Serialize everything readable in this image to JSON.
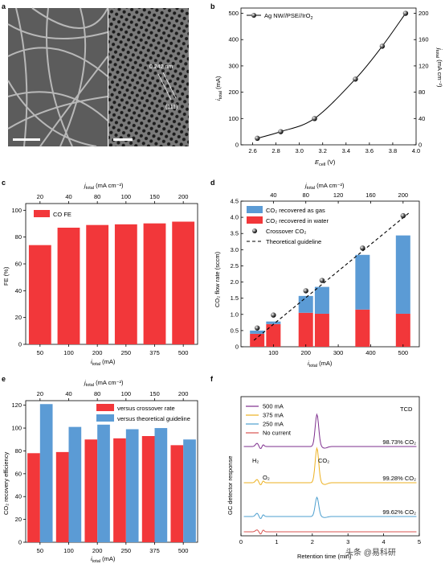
{
  "panel_letters": {
    "a": "a",
    "b": "b",
    "c": "c",
    "d": "d",
    "e": "e",
    "f": "f"
  },
  "panel_a": {
    "lattice_label": "0.242 nm",
    "plane_label": "(111)"
  },
  "chart_data": [
    {
      "panel": "b",
      "type": "scatter",
      "legend": "Ag NW//PSE//IrO",
      "legend_sub": "2",
      "xlabel_main": "E",
      "xlabel_sub": "cell",
      "xlabel_unit": " (V)",
      "ylabel_left_main": "i",
      "ylabel_left_sub": "total",
      "ylabel_left_unit": " (mA)",
      "ylabel_right_main": "j",
      "ylabel_right_sub": "total",
      "ylabel_right_unit": " (mA cm⁻²)",
      "xlim": [
        2.5,
        4.0
      ],
      "ylim_left": [
        0,
        520
      ],
      "ylim_right": [
        0,
        208
      ],
      "xticks": [
        "2.6",
        "2.8",
        "3.0",
        "3.2",
        "3.4",
        "3.6",
        "3.8",
        "4.0"
      ],
      "yticks_left": [
        "0",
        "100",
        "200",
        "300",
        "400",
        "500"
      ],
      "yticks_right": [
        "0",
        "40",
        "80",
        "120",
        "160",
        "200"
      ],
      "x": [
        2.64,
        2.84,
        3.13,
        3.48,
        3.71,
        3.91
      ],
      "y": [
        25,
        50,
        100,
        250,
        375,
        500
      ]
    },
    {
      "panel": "c",
      "type": "bar",
      "legend": "CO FE",
      "xlabel_main": "i",
      "xlabel_sub": "total",
      "xlabel_unit": " (mA)",
      "top_label_main": "j",
      "top_label_sub": "total",
      "top_label_unit": " (mA cm⁻²)",
      "ylabel": "FE (%)",
      "categories": [
        "50",
        "100",
        "200",
        "250",
        "375",
        "500"
      ],
      "top_categories": [
        "20",
        "40",
        "80",
        "100",
        "150",
        "200"
      ],
      "values": [
        74,
        87,
        89,
        89.5,
        90.2,
        91.5
      ],
      "ylim": [
        0,
        105
      ],
      "yticks": [
        "0",
        "20",
        "40",
        "60",
        "80",
        "100"
      ],
      "color": "#f2373a"
    },
    {
      "panel": "d",
      "type": "bar",
      "xlabel_main": "i",
      "xlabel_sub": "total",
      "xlabel_unit": " (mA)",
      "top_label_main": "j",
      "top_label_sub": "total",
      "top_label_unit": " (mA cm⁻²)",
      "ylabel": "CO₂ flow rate (sccm)",
      "xlim": [
        0,
        550
      ],
      "ylim": [
        0,
        4.5
      ],
      "xticks": [
        "100",
        "200",
        "300",
        "400",
        "500"
      ],
      "top_xticks": [
        "40",
        "80",
        "120",
        "160",
        "200"
      ],
      "yticks": [
        "0",
        "0.5",
        "1.0",
        "1.5",
        "2.0",
        "2.5",
        "3.0",
        "3.5",
        "4.0",
        "4.5"
      ],
      "x": [
        50,
        100,
        200,
        250,
        375,
        500
      ],
      "series": [
        {
          "name": "CO₂ recovered in water",
          "values": [
            0.4,
            0.7,
            1.05,
            1.02,
            1.15,
            1.02
          ],
          "color": "#f2373a"
        },
        {
          "name": "CO₂ recovered as gas",
          "values": [
            0.1,
            0.08,
            0.52,
            0.83,
            1.69,
            2.42
          ],
          "color": "#5b9bd5"
        }
      ],
      "crossover": {
        "name": "Crossover CO₂",
        "values": [
          0.58,
          0.98,
          1.73,
          2.05,
          3.05,
          4.05
        ]
      },
      "guideline": {
        "name": "Theoretical guideline",
        "x": [
          40,
          520
        ],
        "y": [
          0.2,
          4.15
        ]
      },
      "legend": [
        "CO₂ recovered as gas",
        "CO₂ recovered in water",
        "Crossover CO₂",
        "Theoretical guideline"
      ]
    },
    {
      "panel": "e",
      "type": "bar",
      "xlabel_main": "i",
      "xlabel_sub": "total",
      "xlabel_unit": " (mA)",
      "top_label_main": "j",
      "top_label_sub": "total",
      "top_label_unit": " (mA cm⁻²)",
      "ylabel": "CO₂ recovery efficiency",
      "categories": [
        "50",
        "100",
        "200",
        "250",
        "375",
        "500"
      ],
      "top_categories": [
        "20",
        "40",
        "80",
        "100",
        "150",
        "200"
      ],
      "ylim": [
        0,
        124
      ],
      "yticks": [
        "0",
        "20",
        "40",
        "60",
        "80",
        "100",
        "120"
      ],
      "series": [
        {
          "name": "versus crossover rate",
          "values": [
            78,
            79,
            90,
            91,
            93,
            85
          ],
          "color": "#f2373a"
        },
        {
          "name": "versus theoretical guideline",
          "values": [
            121,
            101,
            103,
            99,
            100,
            90
          ],
          "color": "#5b9bd5"
        }
      ]
    },
    {
      "panel": "f",
      "type": "line",
      "xlabel": "Retention time (min)",
      "ylabel": "GC detector response",
      "xlim": [
        0,
        5
      ],
      "xticks": [
        "0",
        "1",
        "2",
        "3",
        "4",
        "5"
      ],
      "tcd_label": "TCD",
      "series": [
        {
          "name": "500 mA",
          "color": "#7e2f8e",
          "annotation": "98.73% CO₂"
        },
        {
          "name": "375 mA",
          "color": "#edb120",
          "annotation": "99.28% CO₂"
        },
        {
          "name": "250 mA",
          "color": "#4d9fcf",
          "annotation": "99.62% CO₂"
        },
        {
          "name": "No current",
          "color": "#d9534f",
          "annotation": ""
        }
      ],
      "peak_labels": {
        "h2": "H₂",
        "o2": "O₂",
        "co2": "CO₂"
      }
    }
  ],
  "watermark": "头条 @易科研"
}
